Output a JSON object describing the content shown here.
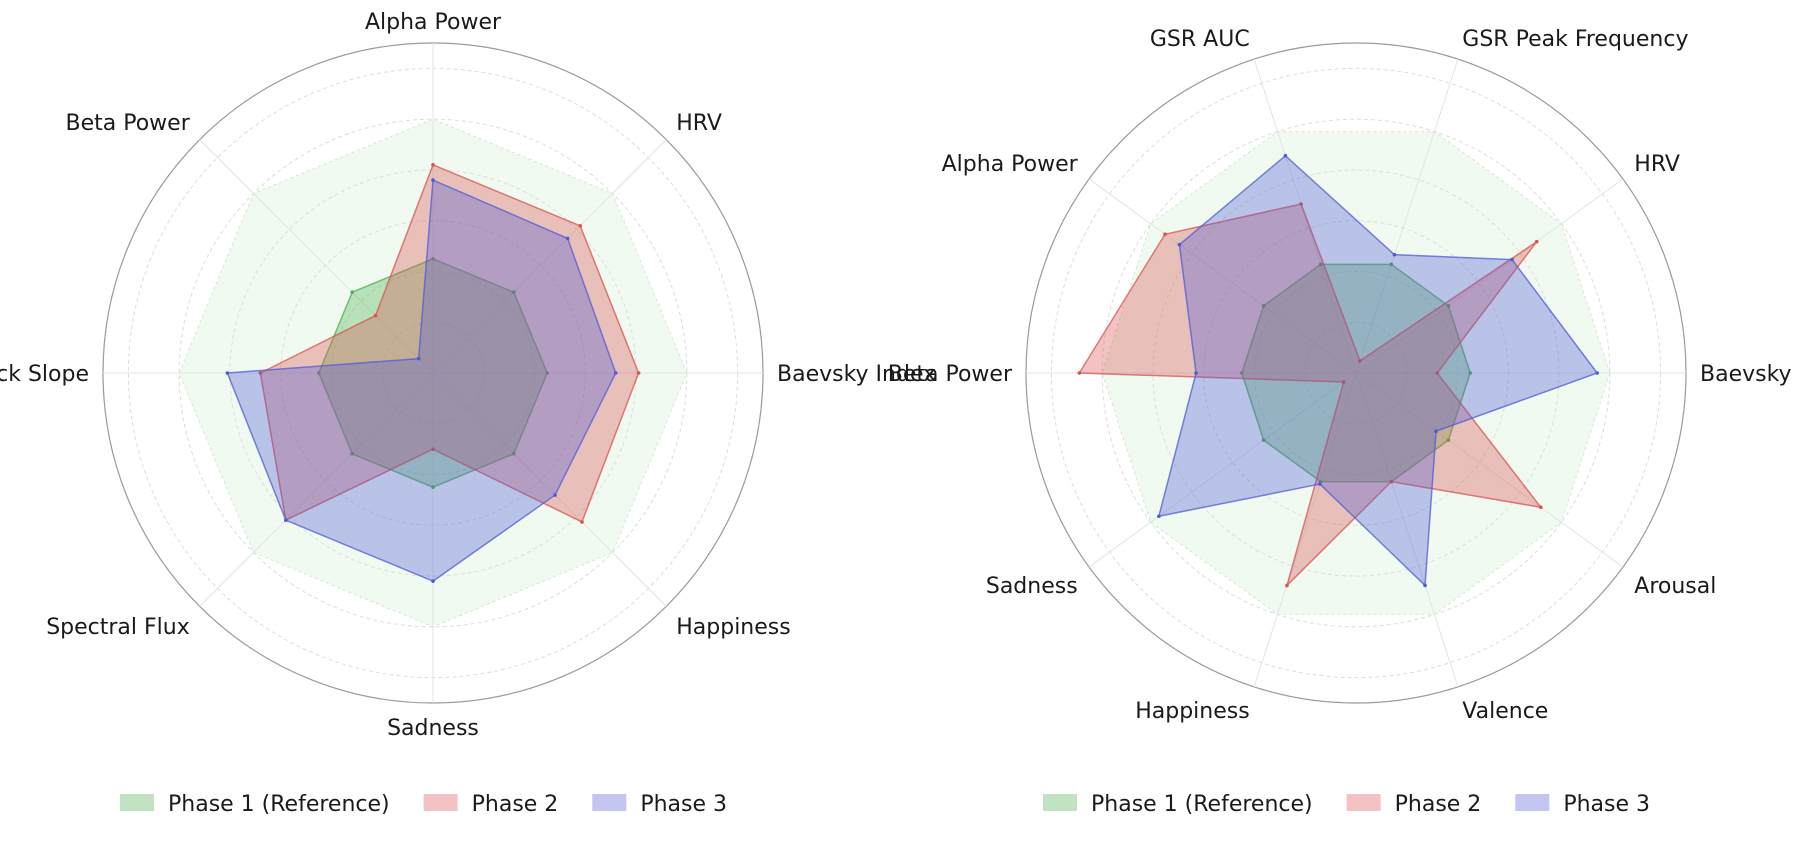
{
  "chart_data": [
    {
      "type": "radar",
      "axes": [
        "Baevsky Index",
        "HRV",
        "Alpha Power",
        "Beta Power",
        "Attack Slope",
        "Spectral Flux",
        "Sadness",
        "Happiness"
      ],
      "rlim": [
        0,
        1.3
      ],
      "grid": true,
      "legend_position": "bottom",
      "series": [
        {
          "name": "Phase 1 (Reference)",
          "values": [
            0.45,
            0.45,
            0.45,
            0.45,
            0.45,
            0.45,
            0.45,
            0.45
          ],
          "color": "#4caf50"
        },
        {
          "name": "Phase 2",
          "values": [
            0.81,
            0.82,
            0.82,
            0.32,
            0.68,
            0.82,
            0.3,
            0.83
          ],
          "color": "#d9534f"
        },
        {
          "name": "Phase 3",
          "values": [
            0.72,
            0.75,
            0.76,
            0.08,
            0.81,
            0.82,
            0.82,
            0.68
          ],
          "color": "#4f5bd5"
        }
      ],
      "reference_band": {
        "values": [
          1.0,
          1.0,
          1.0,
          1.0,
          1.0,
          1.0,
          1.0,
          1.0
        ],
        "color": "#e8f7e8"
      }
    },
    {
      "type": "radar",
      "axes": [
        "Baevsky Index",
        "HRV",
        "GSR Peak Frequency",
        "GSR AUC",
        "Alpha Power",
        "Beta Power",
        "Sadness",
        "Happiness",
        "Valence",
        "Arousal"
      ],
      "rlim": [
        0,
        1.3
      ],
      "grid": true,
      "legend_position": "bottom",
      "series": [
        {
          "name": "Phase 1 (Reference)",
          "values": [
            0.45,
            0.45,
            0.45,
            0.45,
            0.45,
            0.45,
            0.45,
            0.45,
            0.45,
            0.45
          ],
          "color": "#4caf50"
        },
        {
          "name": "Phase 2",
          "values": [
            0.32,
            0.88,
            0.05,
            0.7,
            0.93,
            1.09,
            0.06,
            0.88,
            0.45,
            0.9
          ],
          "color": "#d9534f"
        },
        {
          "name": "Phase 3",
          "values": [
            0.95,
            0.76,
            0.49,
            0.9,
            0.86,
            0.63,
            0.96,
            0.46,
            0.88,
            0.39
          ],
          "color": "#4f5bd5"
        }
      ],
      "reference_band": {
        "values": [
          1.0,
          1.0,
          1.0,
          1.0,
          1.0,
          1.0,
          1.0,
          1.0,
          1.0,
          1.0
        ],
        "color": "#e8f7e8"
      }
    }
  ]
}
